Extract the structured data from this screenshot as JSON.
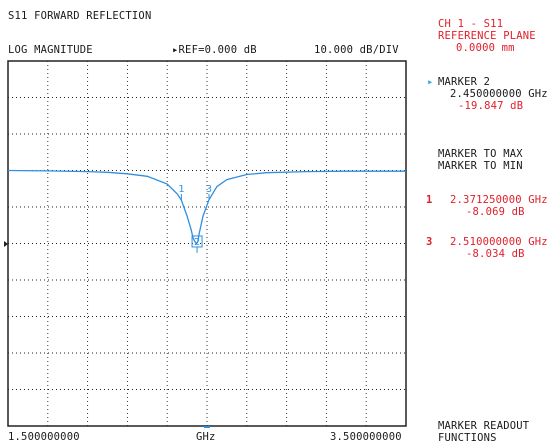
{
  "header": {
    "title": "S11 FORWARD REFLECTION",
    "format": "LOG MAGNITUDE",
    "ref_label": "▸REF=0.000 dB",
    "scale": "10.000 dB/DIV"
  },
  "axis": {
    "start": "1.500000000",
    "unit": "GHz",
    "stop": "3.500000000"
  },
  "side": {
    "channel": "CH 1 - S11",
    "ref_plane_label": "REFERENCE PLANE",
    "ref_plane_value": "0.0000 mm",
    "active_marker": {
      "pointer": "▸",
      "label": "MARKER 2",
      "freq": "2.450000000 GHz",
      "value": "-19.847 dB"
    },
    "menu": [
      "MARKER TO MAX",
      "MARKER TO MIN"
    ],
    "marker_list": [
      {
        "num": "1",
        "freq": "2.371250000 GHz",
        "value": "-8.069 dB"
      },
      {
        "num": "3",
        "freq": "2.510000000 GHz",
        "value": "-8.034 dB"
      }
    ],
    "footer": [
      "MARKER READOUT",
      "FUNCTIONS"
    ]
  },
  "chart_data": {
    "type": "line",
    "x_unit": "GHz",
    "xlim": [
      1.5,
      3.5
    ],
    "ylim": [
      -70,
      30
    ],
    "grid": true,
    "reference_level_db": 0,
    "series": [
      {
        "x": [
          1.5,
          1.7,
          1.9,
          2.0,
          2.1,
          2.2,
          2.3,
          2.35,
          2.371,
          2.4,
          2.42,
          2.43,
          2.44,
          2.445,
          2.45,
          2.455,
          2.46,
          2.48,
          2.51,
          2.55,
          2.6,
          2.7,
          2.8,
          3.0,
          3.2,
          3.5
        ],
        "y": [
          0,
          -0.1,
          -0.3,
          -0.5,
          -0.9,
          -1.6,
          -3.7,
          -6.4,
          -8.07,
          -12.5,
          -16.2,
          -18.5,
          -19.6,
          -19.9,
          -19.85,
          -19.3,
          -17.5,
          -12.5,
          -8.03,
          -4.4,
          -2.5,
          -1.1,
          -0.6,
          -0.3,
          -0.2,
          -0.2
        ]
      }
    ],
    "markers": [
      {
        "label": "1",
        "x": 2.37125,
        "y": -8.069
      },
      {
        "label": "2",
        "x": 2.45,
        "y": -19.847
      },
      {
        "label": "3",
        "x": 2.51,
        "y": -8.034
      }
    ]
  },
  "colors": {
    "trace": "#2f8fe0",
    "grid": "#222222",
    "accent": "#e0202a",
    "pointer": "#34a8e8"
  }
}
